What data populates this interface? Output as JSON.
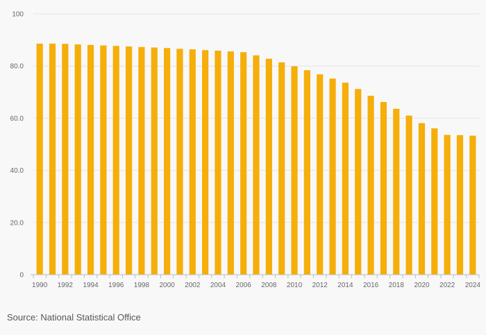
{
  "chart_data": {
    "type": "bar",
    "title": "",
    "xlabel": "",
    "ylabel": "",
    "ylim": [
      0,
      100
    ],
    "yticks": [
      "0",
      "20.0",
      "40.0",
      "60.0",
      "80.0",
      "100"
    ],
    "ytick_values": [
      0,
      20,
      40,
      60,
      80,
      100
    ],
    "grid": true,
    "bar_color": "#f5ae0a",
    "categories": [
      "1990",
      "1991",
      "1992",
      "1993",
      "1994",
      "1995",
      "1996",
      "1997",
      "1998",
      "1999",
      "2000",
      "2001",
      "2002",
      "2003",
      "2004",
      "2005",
      "2006",
      "2007",
      "2008",
      "2009",
      "2010",
      "2011",
      "2012",
      "2013",
      "2014",
      "2015",
      "2016",
      "2017",
      "2018",
      "2019",
      "2020",
      "2021",
      "2022",
      "2023",
      "2024"
    ],
    "values": [
      88.6,
      88.6,
      88.5,
      88.3,
      88.1,
      87.9,
      87.7,
      87.5,
      87.3,
      87.1,
      86.9,
      86.6,
      86.4,
      86.1,
      85.9,
      85.6,
      85.3,
      84.1,
      82.8,
      81.4,
      79.9,
      78.4,
      76.8,
      75.2,
      73.6,
      71.2,
      68.6,
      66.2,
      63.6,
      61.0,
      58.1,
      56.1,
      53.6,
      53.5,
      53.3
    ],
    "xtick_labels": [
      "1990",
      "1992",
      "1994",
      "1996",
      "1998",
      "2000",
      "2002",
      "2004",
      "2006",
      "2008",
      "2010",
      "2012",
      "2014",
      "2016",
      "2018",
      "2020",
      "2022",
      "2024"
    ]
  },
  "footer": {
    "source": "Source: National Statistical Office"
  }
}
